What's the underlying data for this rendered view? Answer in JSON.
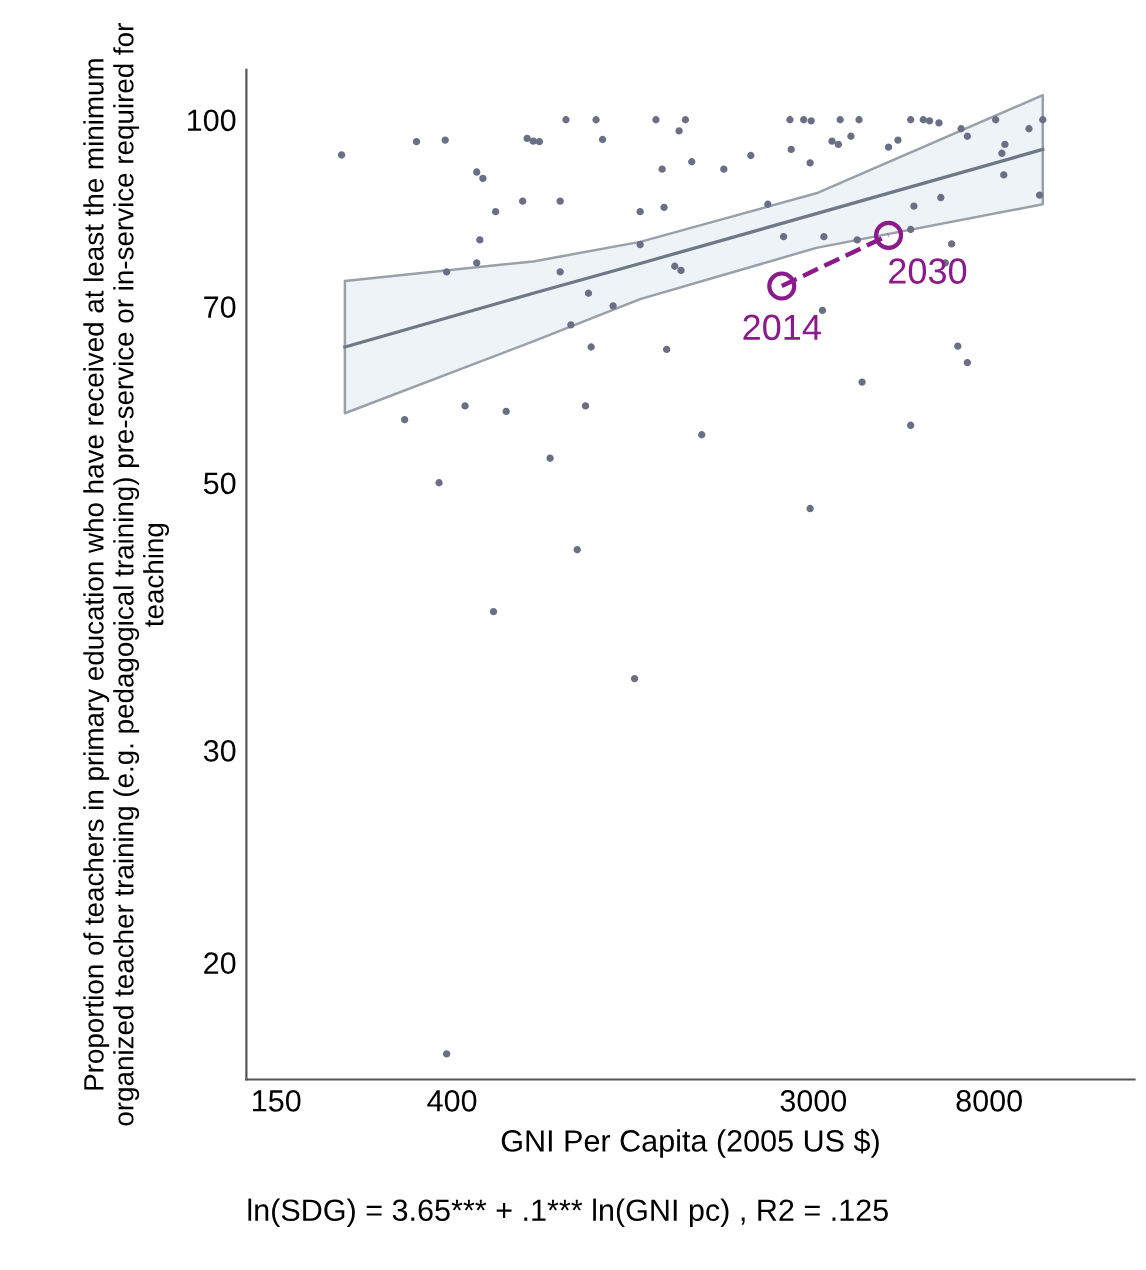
{
  "chart_data": {
    "type": "scatter",
    "xlabel": "GNI Per Capita (2005 US $)",
    "ylabel": "Proportion of teachers in primary education who have received at least the minimum organized teacher training (e.g. pedagogical training) pre-service or in-service required for teaching",
    "log": "xy",
    "xlim": [
      127,
      18000
    ],
    "ylim": [
      16,
      110
    ],
    "xticks": [
      150,
      400,
      3000,
      8000
    ],
    "yticks": [
      20,
      30,
      50,
      70,
      100
    ],
    "grid": false,
    "legend": false,
    "annotations": [
      "ln(SDG) = 3.65*** + .1*** ln(GNI pc) , R2 = .125",
      {
        "text": "2014",
        "x": 2516,
        "y": 72.8
      },
      {
        "text": "2030",
        "x": 4565,
        "y": 80.2
      }
    ],
    "series": [
      {
        "color": "#6b6f85",
        "marker": "circle",
        "x": [
          216,
          328,
          385,
          608,
          629,
          651,
          755,
          893,
          926,
          1247,
          1419,
          1470,
          459,
          475,
          510,
          593,
          731,
          1291,
          1523,
          1821,
          2117,
          1142,
          1305,
          2328,
          2633,
          2843,
          2965,
          3485,
          3872,
          2652,
          2947,
          3330,
          3450,
          3700,
          4565,
          4810,
          5164,
          5540,
          5737,
          6046,
          6841,
          7084,
          8296,
          8734,
          8590,
          8680,
          9990,
          10790,
          10600,
          5258,
          6109,
          467,
          459,
          388,
          731,
          1142,
          1385,
          1434,
          2542,
          3182,
          3833,
          5164,
          6488,
          6264,
          856,
          982,
          776,
          869,
          1324,
          3157,
          6716,
          7084,
          3938,
          5164,
          1610,
          307,
          430,
          541,
          842,
          691,
          372,
          2947,
          804,
          504,
          1107,
          388
        ],
        "values": [
          93.5,
          95.9,
          96.2,
          96.5,
          96.0,
          95.9,
          100,
          100,
          96.3,
          100,
          97.9,
          100,
          90.5,
          89.4,
          83.9,
          85.6,
          85.6,
          91.0,
          92.3,
          91.0,
          93.4,
          83.9,
          84.6,
          85.1,
          100,
          100,
          99.8,
          100,
          100,
          94.5,
          92.1,
          96.0,
          95.4,
          96.9,
          94.9,
          96.2,
          100,
          100,
          99.8,
          99.4,
          98.3,
          96.9,
          100,
          95.4,
          93.8,
          90.0,
          98.3,
          100,
          86.6,
          84.8,
          86.2,
          79.5,
          76.1,
          74.8,
          74.8,
          78.8,
          75.6,
          75.0,
          80.0,
          80.0,
          79.5,
          81.1,
          78.9,
          76.1,
          71.8,
          70.1,
          67.6,
          64.8,
          64.5,
          69.5,
          64.9,
          62.9,
          60.6,
          55.8,
          54.8,
          56.4,
          57.9,
          57.3,
          57.9,
          52.4,
          50.0,
          47.6,
          44.0,
          39.1,
          34.4,
          16.8
        ]
      },
      {
        "type": "line",
        "color": "#6e7887",
        "x": [
          220,
          629,
          1142,
          3051,
          10790
        ],
        "values": [
          64.8,
          71.8,
          76.0,
          83.6,
          94.5
        ],
        "lower": [
          57.1,
          65.5,
          71.0,
          78.3,
          85.1
        ],
        "upper": [
          73.5,
          76.3,
          79.2,
          86.9,
          104.8
        ]
      },
      {
        "type": "line",
        "color": "#8b1a8b",
        "marker": "circle",
        "line_style": "dashed",
        "x": [
          2516,
          4565
        ],
        "values": [
          72.8,
          80.2
        ]
      }
    ]
  }
}
